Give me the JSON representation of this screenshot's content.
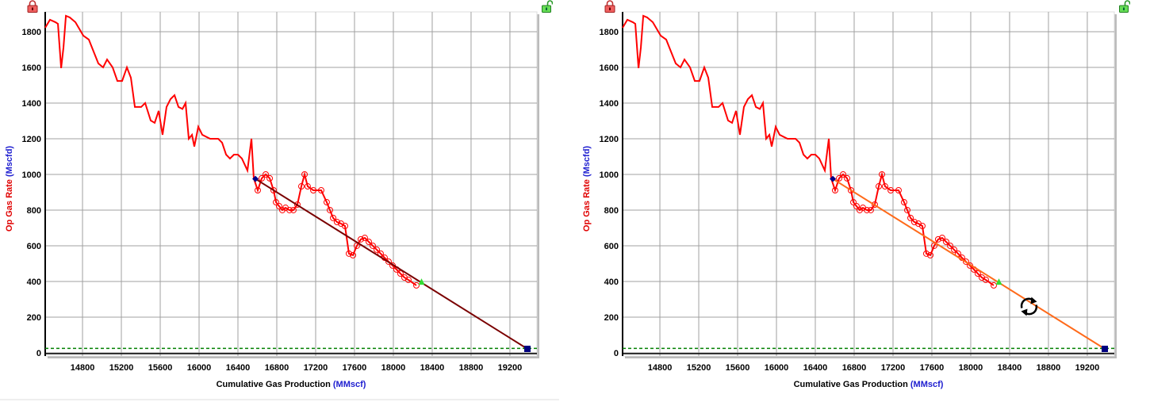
{
  "chart_data": [
    {
      "type": "line",
      "title": "",
      "xlabel": "Cumulative Gas Production",
      "xlabel_unit": "(MMscf)",
      "ylabel": "Op Gas Rate",
      "ylabel_unit": "(Mscfd)",
      "xlim": [
        14416,
        19478
      ],
      "ylim": [
        -18,
        1911
      ],
      "xticks": [
        14800,
        15200,
        15600,
        16000,
        16400,
        16800,
        17200,
        17600,
        18000,
        18400,
        18800,
        19200
      ],
      "yticks": [
        0,
        200,
        400,
        600,
        800,
        1000,
        1200,
        1400,
        1600,
        1800
      ],
      "grid": true,
      "series": [
        {
          "name": "Op Gas Rate",
          "color": "#ff0000",
          "points": [
            [
              14416,
              1822
            ],
            [
              14465,
              1867
            ],
            [
              14522,
              1853
            ],
            [
              14547,
              1844
            ],
            [
              14580,
              1596
            ],
            [
              14604,
              1711
            ],
            [
              14629,
              1889
            ],
            [
              14669,
              1880
            ],
            [
              14727,
              1853
            ],
            [
              14808,
              1778
            ],
            [
              14865,
              1756
            ],
            [
              14914,
              1689
            ],
            [
              14963,
              1622
            ],
            [
              15012,
              1600
            ],
            [
              15053,
              1644
            ],
            [
              15110,
              1600
            ],
            [
              15159,
              1524
            ],
            [
              15208,
              1524
            ],
            [
              15257,
              1600
            ],
            [
              15298,
              1542
            ],
            [
              15339,
              1378
            ],
            [
              15404,
              1378
            ],
            [
              15445,
              1400
            ],
            [
              15502,
              1302
            ],
            [
              15543,
              1289
            ],
            [
              15584,
              1356
            ],
            [
              15624,
              1222
            ],
            [
              15665,
              1378
            ],
            [
              15706,
              1422
            ],
            [
              15747,
              1444
            ],
            [
              15788,
              1378
            ],
            [
              15829,
              1367
            ],
            [
              15861,
              1400
            ],
            [
              15894,
              1200
            ],
            [
              15927,
              1222
            ],
            [
              15951,
              1156
            ],
            [
              15992,
              1267
            ],
            [
              16033,
              1222
            ],
            [
              16114,
              1200
            ],
            [
              16196,
              1200
            ],
            [
              16237,
              1178
            ],
            [
              16278,
              1111
            ],
            [
              16318,
              1089
            ],
            [
              16359,
              1111
            ],
            [
              16400,
              1111
            ],
            [
              16441,
              1089
            ],
            [
              16498,
              1022
            ],
            [
              16539,
              1200
            ],
            [
              16563,
              978
            ],
            [
              16604,
              911
            ],
            [
              16645,
              978
            ],
            [
              16686,
              1000
            ],
            [
              16727,
              978
            ],
            [
              16767,
              911
            ],
            [
              16792,
              844
            ],
            [
              16824,
              822
            ],
            [
              16857,
              800
            ],
            [
              16890,
              813
            ],
            [
              16931,
              800
            ],
            [
              16971,
              800
            ],
            [
              17012,
              831
            ],
            [
              17053,
              933
            ],
            [
              17086,
              1000
            ],
            [
              17118,
              933
            ],
            [
              17176,
              911
            ],
            [
              17257,
              911
            ],
            [
              17314,
              844
            ],
            [
              17347,
              800
            ],
            [
              17380,
              756
            ],
            [
              17420,
              733
            ],
            [
              17461,
              724
            ],
            [
              17502,
              711
            ],
            [
              17543,
              556
            ],
            [
              17584,
              547
            ],
            [
              17624,
              600
            ],
            [
              17665,
              636
            ],
            [
              17706,
              644
            ],
            [
              17747,
              622
            ],
            [
              17788,
              600
            ],
            [
              17829,
              578
            ],
            [
              17869,
              556
            ],
            [
              17910,
              533
            ],
            [
              17951,
              511
            ],
            [
              17992,
              489
            ],
            [
              18033,
              467
            ],
            [
              18073,
              444
            ],
            [
              18114,
              422
            ],
            [
              18155,
              409
            ],
            [
              18237,
              378
            ]
          ]
        },
        {
          "name": "Forecast",
          "color": "#7a0000",
          "points": [
            [
              16580,
              975
            ],
            [
              19380,
              22
            ]
          ]
        }
      ],
      "fit_start": [
        16580,
        975
      ],
      "fit_anchor": [
        18290,
        395
      ],
      "fit_end": [
        19380,
        22
      ],
      "economic_limit": 25,
      "selected_range": [
        16580,
        18290
      ],
      "rotate_handle": null
    },
    {
      "type": "line",
      "title": "",
      "xlabel": "Cumulative Gas Production",
      "xlabel_unit": "(MMscf)",
      "ylabel": "Op Gas Rate",
      "ylabel_unit": "(Mscfd)",
      "xlim": [
        14416,
        19478
      ],
      "ylim": [
        -18,
        1911
      ],
      "xticks": [
        14800,
        15200,
        15600,
        16000,
        16400,
        16800,
        17200,
        17600,
        18000,
        18400,
        18800,
        19200
      ],
      "yticks": [
        0,
        200,
        400,
        600,
        800,
        1000,
        1200,
        1400,
        1600,
        1800
      ],
      "grid": true,
      "series": [
        {
          "name": "Op Gas Rate",
          "color": "#ff0000",
          "points": [
            [
              14416,
              1822
            ],
            [
              14465,
              1867
            ],
            [
              14522,
              1853
            ],
            [
              14547,
              1844
            ],
            [
              14580,
              1596
            ],
            [
              14604,
              1711
            ],
            [
              14629,
              1889
            ],
            [
              14669,
              1880
            ],
            [
              14727,
              1853
            ],
            [
              14808,
              1778
            ],
            [
              14865,
              1756
            ],
            [
              14914,
              1689
            ],
            [
              14963,
              1622
            ],
            [
              15012,
              1600
            ],
            [
              15053,
              1644
            ],
            [
              15110,
              1600
            ],
            [
              15159,
              1524
            ],
            [
              15208,
              1524
            ],
            [
              15257,
              1600
            ],
            [
              15298,
              1542
            ],
            [
              15339,
              1378
            ],
            [
              15404,
              1378
            ],
            [
              15445,
              1400
            ],
            [
              15502,
              1302
            ],
            [
              15543,
              1289
            ],
            [
              15584,
              1356
            ],
            [
              15624,
              1222
            ],
            [
              15665,
              1378
            ],
            [
              15706,
              1422
            ],
            [
              15747,
              1444
            ],
            [
              15788,
              1378
            ],
            [
              15829,
              1367
            ],
            [
              15861,
              1400
            ],
            [
              15894,
              1200
            ],
            [
              15927,
              1222
            ],
            [
              15951,
              1156
            ],
            [
              15992,
              1267
            ],
            [
              16033,
              1222
            ],
            [
              16114,
              1200
            ],
            [
              16196,
              1200
            ],
            [
              16237,
              1178
            ],
            [
              16278,
              1111
            ],
            [
              16318,
              1089
            ],
            [
              16359,
              1111
            ],
            [
              16400,
              1111
            ],
            [
              16441,
              1089
            ],
            [
              16498,
              1022
            ],
            [
              16539,
              1200
            ],
            [
              16563,
              978
            ],
            [
              16604,
              911
            ],
            [
              16645,
              978
            ],
            [
              16686,
              1000
            ],
            [
              16727,
              978
            ],
            [
              16767,
              911
            ],
            [
              16792,
              844
            ],
            [
              16824,
              822
            ],
            [
              16857,
              800
            ],
            [
              16890,
              813
            ],
            [
              16931,
              800
            ],
            [
              16971,
              800
            ],
            [
              17012,
              831
            ],
            [
              17053,
              933
            ],
            [
              17086,
              1000
            ],
            [
              17118,
              933
            ],
            [
              17176,
              911
            ],
            [
              17257,
              911
            ],
            [
              17314,
              844
            ],
            [
              17347,
              800
            ],
            [
              17380,
              756
            ],
            [
              17420,
              733
            ],
            [
              17461,
              724
            ],
            [
              17502,
              711
            ],
            [
              17543,
              556
            ],
            [
              17584,
              547
            ],
            [
              17624,
              600
            ],
            [
              17665,
              636
            ],
            [
              17706,
              644
            ],
            [
              17747,
              622
            ],
            [
              17788,
              600
            ],
            [
              17829,
              578
            ],
            [
              17869,
              556
            ],
            [
              17910,
              533
            ],
            [
              17951,
              511
            ],
            [
              17992,
              489
            ],
            [
              18033,
              467
            ],
            [
              18073,
              444
            ],
            [
              18114,
              422
            ],
            [
              18155,
              409
            ],
            [
              18237,
              378
            ]
          ]
        },
        {
          "name": "Forecast",
          "color": "#ff6a1a",
          "points": [
            [
              16580,
              975
            ],
            [
              19380,
              22
            ]
          ]
        }
      ],
      "fit_start": [
        16580,
        975
      ],
      "fit_anchor": [
        18290,
        395
      ],
      "fit_end": [
        19380,
        22
      ],
      "economic_limit": 25,
      "selected_range": [
        16580,
        18290
      ],
      "rotate_handle": [
        18600,
        260
      ]
    }
  ],
  "colors": {
    "grid": "#a0a0a0",
    "econ": "#008000",
    "start": "#00008b",
    "anchor": "#33dd33",
    "end": "#000080"
  },
  "icons": {
    "left_lock": "locked-padlock",
    "right_lock": "unlocked-padlock",
    "rotate": "rotate-arrows"
  }
}
